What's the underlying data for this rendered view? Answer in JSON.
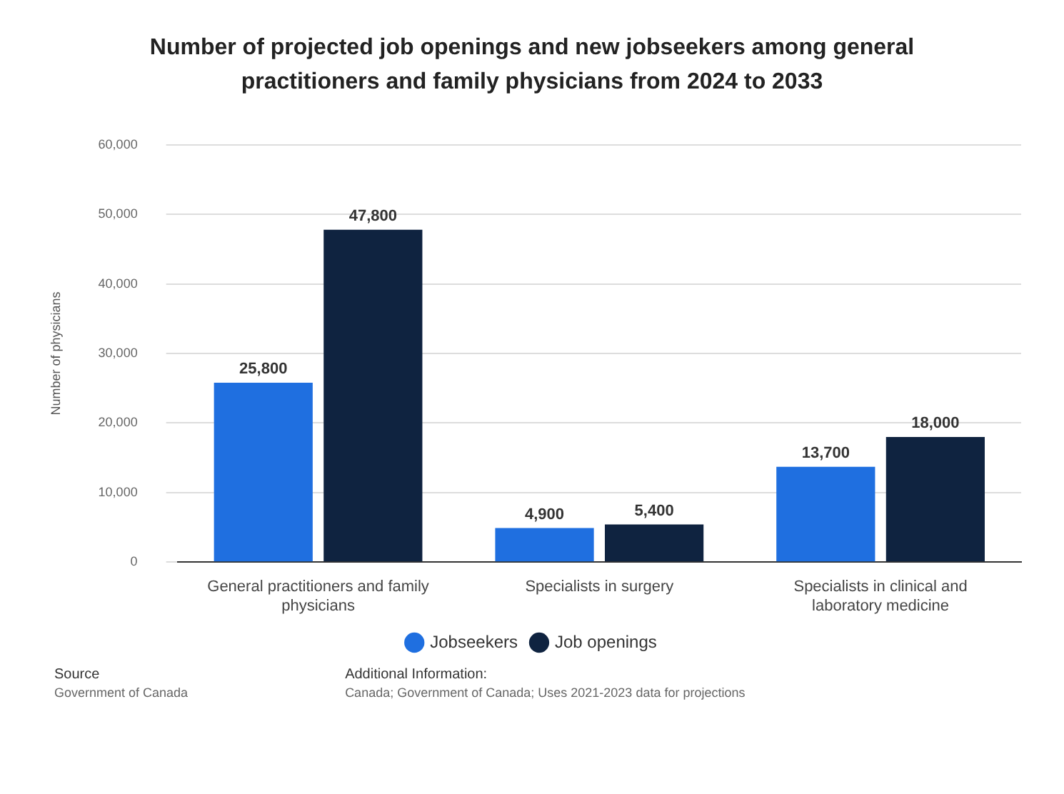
{
  "chart_data": {
    "type": "bar",
    "title": "Number of projected job openings and new jobseekers among general practitioners and family physicians from 2024 to 2033",
    "ylabel": "Number of physicians",
    "categories": [
      "General practitioners and family physicians",
      "Specialists in surgery",
      "Specialists in clinical and laboratory medicine"
    ],
    "series": [
      {
        "name": "Jobseekers",
        "color": "#1f6fe0",
        "values": [
          25800,
          4900,
          13700
        ],
        "value_labels": [
          "25,800",
          "4,900",
          "13,700"
        ]
      },
      {
        "name": "Job openings",
        "color": "#0f2340",
        "values": [
          47800,
          5400,
          18000
        ],
        "value_labels": [
          "47,800",
          "5,400",
          "18,000"
        ]
      }
    ],
    "ylim": [
      0,
      60000
    ],
    "yticks": [
      {
        "value": 0,
        "label": "0"
      },
      {
        "value": 10000,
        "label": "10,000"
      },
      {
        "value": 20000,
        "label": "20,000"
      },
      {
        "value": 30000,
        "label": "30,000"
      },
      {
        "value": 40000,
        "label": "40,000"
      },
      {
        "value": 50000,
        "label": "50,000"
      },
      {
        "value": 60000,
        "label": "60,000"
      }
    ],
    "grid": "y",
    "legend": "bottom",
    "annotations": [
      "Source",
      "Government of Canada",
      "Additional Information:",
      "Canada; Government of Canada; Uses 2021-2023 data for projections"
    ]
  }
}
